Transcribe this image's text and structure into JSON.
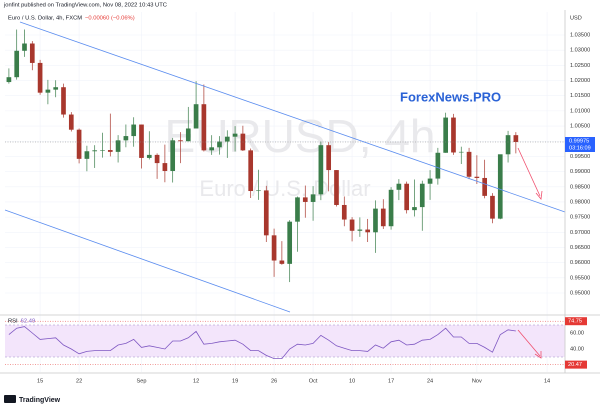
{
  "header": {
    "publisher": "jonfint published on TradingView.com, Nov 08, 2022 10:43 UTC"
  },
  "chart_data": {
    "type": "candlestick",
    "symbol": "Euro / U.S. Dollar, 4h, FXCM",
    "change": "−0.00060 (−0.06%)",
    "watermark": "EURUSD, 4h",
    "watermark_subtitle": "Euro / U.S. Dollar",
    "brand": "ForexNews.PRO",
    "currency": "USD",
    "countdown": "03:16:09",
    "up_color": "#3a7d4a",
    "down_color": "#a8372d",
    "x": [
      0,
      1,
      2,
      3,
      4,
      5,
      6,
      7,
      8,
      9,
      10,
      11,
      12,
      13,
      14,
      15,
      16,
      17,
      18,
      19,
      20,
      21,
      22,
      23,
      24,
      25,
      26,
      27,
      28,
      29,
      30,
      31,
      32,
      33,
      34,
      35,
      36,
      37,
      38,
      39,
      40,
      41,
      42,
      43,
      44,
      45,
      46,
      47,
      48,
      49,
      50,
      51,
      52,
      53,
      54,
      55,
      56,
      57,
      58,
      59,
      60,
      61,
      62,
      63,
      64,
      65
    ],
    "open": [
      1.0195,
      1.0211,
      1.0298,
      1.0322,
      1.0258,
      1.016,
      1.017,
      1.0178,
      1.0088,
      1.0038,
      0.9942,
      0.9967,
      0.997,
      0.9971,
      0.9965,
      1.0003,
      1.0017,
      1.0055,
      0.9945,
      0.9955,
      0.9928,
      0.9902,
      1.0003,
      1.0,
      1.0042,
      1.0122,
      0.997,
      0.998,
      0.9999,
      1.0015,
      1.0025,
      0.997,
      0.9836,
      0.9838,
      0.969,
      0.9607,
      0.9596,
      0.9735,
      0.9815,
      0.98,
      0.9825,
      0.9987,
      0.9905,
      0.979,
      0.9742,
      0.9705,
      0.9709,
      0.97,
      0.9778,
      0.972,
      0.984,
      0.986,
      0.9773,
      0.9783,
      0.986,
      0.9877,
      0.9962,
      1.0078,
      0.9963,
      0.9965,
      0.9883,
      0.9879,
      0.982,
      0.9745,
      0.9957,
      1.002
    ],
    "high": [
      1.024,
      1.0368,
      1.0368,
      1.033,
      1.0268,
      1.0202,
      1.0201,
      1.019,
      1.0096,
      1.0042,
      0.9985,
      0.9987,
      1.0028,
      1.0091,
      1.002,
      1.0055,
      1.0079,
      1.0055,
      1.0033,
      0.996,
      0.9989,
      1.0011,
      1.003,
      1.0113,
      1.0198,
      1.0187,
      1.002,
      1.0017,
      1.0036,
      1.005,
      1.0051,
      0.9976,
      0.9906,
      0.9853,
      0.9712,
      0.9671,
      0.974,
      0.9818,
      0.9854,
      0.9852,
      0.9999,
      0.9997,
      0.9905,
      0.9818,
      0.975,
      0.9749,
      0.9744,
      0.9805,
      0.9809,
      0.9849,
      0.9875,
      0.9867,
      0.9874,
      0.987,
      0.9905,
      0.9978,
      1.0094,
      1.009,
      0.9982,
      0.9978,
      0.9954,
      0.9939,
      0.9829,
      0.9955,
      1.0034,
      1.003
    ],
    "low": [
      1.019,
      1.0203,
      1.0278,
      1.0234,
      1.0153,
      1.0122,
      1.0145,
      1.0078,
      1.0032,
      0.9927,
      0.9901,
      0.9912,
      0.9946,
      0.995,
      0.993,
      0.998,
      0.9982,
      0.991,
      0.994,
      0.9876,
      0.9865,
      0.9864,
      0.9928,
      1.0,
      1.0044,
      0.9966,
      0.9955,
      0.9956,
      0.9945,
      0.9966,
      0.9968,
      0.9813,
      0.9807,
      0.9668,
      0.9553,
      0.9593,
      0.9536,
      0.9636,
      0.9748,
      0.9738,
      0.9806,
      0.9835,
      0.9785,
      0.972,
      0.967,
      0.9685,
      0.9668,
      0.9632,
      0.9711,
      0.9709,
      0.9806,
      0.9762,
      0.9752,
      0.9705,
      0.9807,
      0.9857,
      0.9962,
      0.9955,
      0.9925,
      0.9875,
      0.9859,
      0.9812,
      0.973,
      0.9743,
      0.993,
      0.996
    ],
    "close": [
      1.0211,
      1.0298,
      1.0322,
      1.0258,
      1.016,
      1.017,
      1.0178,
      1.0088,
      1.0038,
      0.9942,
      0.9967,
      0.997,
      0.9971,
      0.9965,
      1.0003,
      1.0017,
      1.0055,
      0.9945,
      0.9955,
      0.9928,
      0.9902,
      1.0003,
      1.0,
      1.0042,
      1.0122,
      0.997,
      0.998,
      0.9999,
      1.0015,
      1.0025,
      0.997,
      0.9836,
      0.9838,
      0.969,
      0.9607,
      0.9596,
      0.9735,
      0.9815,
      0.98,
      0.9825,
      0.9987,
      0.9905,
      0.979,
      0.9742,
      0.9705,
      0.9709,
      0.97,
      0.9778,
      0.972,
      0.984,
      0.986,
      0.9773,
      0.9783,
      0.986,
      0.9877,
      0.9962,
      1.0078,
      0.9963,
      0.9965,
      0.9883,
      0.9879,
      0.982,
      0.9745,
      0.9957,
      1.002,
      0.99975
    ],
    "xlim": [
      -0.5,
      71.3
    ],
    "ylim": [
      0.94341,
      1.04258
    ],
    "xticks": [
      {
        "value": 4,
        "label": "15"
      },
      {
        "value": 9,
        "label": "22"
      },
      {
        "value": 17,
        "label": "Sep"
      },
      {
        "value": 24,
        "label": "12"
      },
      {
        "value": 29,
        "label": "19"
      },
      {
        "value": 34,
        "label": "26"
      },
      {
        "value": 39,
        "label": "Oct"
      },
      {
        "value": 44,
        "label": "10"
      },
      {
        "value": 49,
        "label": "17"
      },
      {
        "value": 54,
        "label": "24"
      },
      {
        "value": 60,
        "label": "Nov"
      },
      {
        "value": 69,
        "label": "14"
      }
    ],
    "yticks": [
      {
        "value": 0.95,
        "label": "0.95000"
      },
      {
        "value": 0.955,
        "label": "0.95500"
      },
      {
        "value": 0.96,
        "label": "0.96000"
      },
      {
        "value": 0.965,
        "label": "0.96500"
      },
      {
        "value": 0.97,
        "label": "0.97000"
      },
      {
        "value": 0.975,
        "label": "0.97500"
      },
      {
        "value": 0.98,
        "label": "0.98000"
      },
      {
        "value": 0.985,
        "label": "0.98500"
      },
      {
        "value": 0.99,
        "label": "0.99000"
      },
      {
        "value": 0.995,
        "label": "0.99500"
      },
      {
        "value": 1.0,
        "label": "1.00000"
      },
      {
        "value": 1.005,
        "label": "1.00500"
      },
      {
        "value": 1.01,
        "label": "1.01000"
      },
      {
        "value": 1.015,
        "label": "1.01500"
      },
      {
        "value": 1.02,
        "label": "1.02000"
      },
      {
        "value": 1.025,
        "label": "1.02500"
      },
      {
        "value": 1.03,
        "label": "1.03000"
      },
      {
        "value": 1.035,
        "label": "1.03500"
      }
    ],
    "grid": true,
    "rsi": {
      "name": "RSI",
      "color": "#7e57c2",
      "band_color": "#f3e5fb",
      "values": [
        58,
        66,
        68,
        60,
        52,
        53,
        54,
        45,
        40,
        34,
        37,
        38,
        38,
        38,
        45,
        47,
        52,
        42,
        44,
        42,
        40,
        50,
        50,
        54,
        62,
        46,
        47,
        49,
        50,
        51,
        46,
        38,
        38,
        32,
        28,
        28,
        40,
        46,
        45,
        47,
        57,
        51,
        44,
        41,
        38,
        38,
        37,
        45,
        41,
        49,
        51,
        45,
        46,
        51,
        52,
        58,
        66,
        55,
        55,
        47,
        47,
        42,
        36,
        58,
        64,
        62.49
      ],
      "ylim": [
        11.25,
        81.25
      ],
      "band": [
        30,
        70
      ],
      "yticks": [
        {
          "value": 40,
          "label": "40.00"
        },
        {
          "value": 60,
          "label": "60.00"
        }
      ],
      "markers": [
        {
          "value": 74.75,
          "label": "74.75"
        },
        {
          "value": 20.47,
          "label": "20.47"
        }
      ]
    }
  },
  "footer": {
    "logo": "TradingView"
  }
}
